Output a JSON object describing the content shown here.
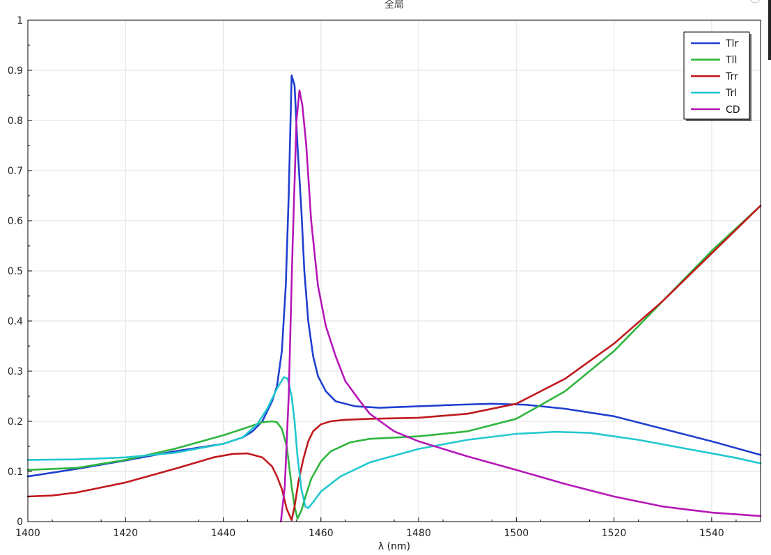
{
  "chart_data": {
    "type": "line",
    "title": "全局",
    "xlabel": "λ (nm)",
    "ylabel": "",
    "xlim": [
      1400,
      1550
    ],
    "ylim": [
      0,
      1
    ],
    "grid": true,
    "legend_position": "top-right",
    "x_ticks": [
      "1400",
      "1420",
      "1440",
      "1460",
      "1480",
      "1500",
      "1520",
      "1540"
    ],
    "y_ticks": [
      "0",
      "0.1",
      "0.2",
      "0.3",
      "0.4",
      "0.5",
      "0.6",
      "0.7",
      "0.8",
      "0.9",
      "1"
    ],
    "series": [
      {
        "name": "Tlr",
        "color": "#1f3fd1",
        "points": [
          [
            1400,
            0.09
          ],
          [
            1410,
            0.105
          ],
          [
            1420,
            0.122
          ],
          [
            1430,
            0.14
          ],
          [
            1440,
            0.155
          ],
          [
            1444,
            0.168
          ],
          [
            1446,
            0.18
          ],
          [
            1448,
            0.2
          ],
          [
            1450,
            0.24
          ],
          [
            1451,
            0.27
          ],
          [
            1452,
            0.34
          ],
          [
            1452.8,
            0.47
          ],
          [
            1453.4,
            0.65
          ],
          [
            1454,
            0.89
          ],
          [
            1454.6,
            0.87
          ],
          [
            1455.2,
            0.75
          ],
          [
            1456,
            0.62
          ],
          [
            1456.6,
            0.5
          ],
          [
            1457.4,
            0.4
          ],
          [
            1458.4,
            0.33
          ],
          [
            1459.4,
            0.29
          ],
          [
            1461,
            0.26
          ],
          [
            1463,
            0.24
          ],
          [
            1467,
            0.23
          ],
          [
            1472,
            0.227
          ],
          [
            1480,
            0.23
          ],
          [
            1488,
            0.233
          ],
          [
            1495,
            0.235
          ],
          [
            1502,
            0.233
          ],
          [
            1510,
            0.225
          ],
          [
            1520,
            0.21
          ],
          [
            1530,
            0.185
          ],
          [
            1540,
            0.16
          ],
          [
            1550,
            0.133
          ]
        ]
      },
      {
        "name": "Tll",
        "color": "#2fb53e",
        "points": [
          [
            1400,
            0.103
          ],
          [
            1410,
            0.107
          ],
          [
            1420,
            0.123
          ],
          [
            1430,
            0.145
          ],
          [
            1440,
            0.172
          ],
          [
            1445,
            0.188
          ],
          [
            1448,
            0.198
          ],
          [
            1450,
            0.2
          ],
          [
            1451,
            0.198
          ],
          [
            1452,
            0.185
          ],
          [
            1453,
            0.15
          ],
          [
            1454,
            0.07
          ],
          [
            1454.6,
            0.03
          ],
          [
            1455.2,
            0.006
          ],
          [
            1456,
            0.022
          ],
          [
            1457,
            0.055
          ],
          [
            1458,
            0.085
          ],
          [
            1460,
            0.12
          ],
          [
            1462,
            0.14
          ],
          [
            1466,
            0.158
          ],
          [
            1470,
            0.165
          ],
          [
            1480,
            0.17
          ],
          [
            1490,
            0.18
          ],
          [
            1500,
            0.205
          ],
          [
            1510,
            0.26
          ],
          [
            1520,
            0.34
          ],
          [
            1530,
            0.44
          ],
          [
            1540,
            0.54
          ],
          [
            1550,
            0.63
          ]
        ]
      },
      {
        "name": "Trr",
        "color": "#c0191d",
        "points": [
          [
            1400,
            0.05
          ],
          [
            1405,
            0.052
          ],
          [
            1410,
            0.058
          ],
          [
            1420,
            0.078
          ],
          [
            1430,
            0.105
          ],
          [
            1438,
            0.128
          ],
          [
            1442,
            0.135
          ],
          [
            1445,
            0.136
          ],
          [
            1448,
            0.128
          ],
          [
            1450,
            0.11
          ],
          [
            1451,
            0.09
          ],
          [
            1452,
            0.065
          ],
          [
            1453,
            0.025
          ],
          [
            1454,
            0.003
          ],
          [
            1454.6,
            0.03
          ],
          [
            1455.4,
            0.08
          ],
          [
            1456.4,
            0.125
          ],
          [
            1457.4,
            0.16
          ],
          [
            1458.4,
            0.18
          ],
          [
            1460,
            0.194
          ],
          [
            1462,
            0.2
          ],
          [
            1465,
            0.203
          ],
          [
            1470,
            0.205
          ],
          [
            1480,
            0.207
          ],
          [
            1490,
            0.215
          ],
          [
            1500,
            0.235
          ],
          [
            1510,
            0.285
          ],
          [
            1520,
            0.355
          ],
          [
            1530,
            0.44
          ],
          [
            1540,
            0.535
          ],
          [
            1550,
            0.63
          ]
        ]
      },
      {
        "name": "Trl",
        "color": "#22c8cf",
        "points": [
          [
            1400,
            0.123
          ],
          [
            1410,
            0.124
          ],
          [
            1420,
            0.128
          ],
          [
            1430,
            0.137
          ],
          [
            1440,
            0.155
          ],
          [
            1444,
            0.168
          ],
          [
            1447,
            0.195
          ],
          [
            1449,
            0.225
          ],
          [
            1451,
            0.265
          ],
          [
            1452.4,
            0.288
          ],
          [
            1453.2,
            0.285
          ],
          [
            1454,
            0.25
          ],
          [
            1454.6,
            0.2
          ],
          [
            1455.2,
            0.13
          ],
          [
            1456,
            0.065
          ],
          [
            1456.8,
            0.03
          ],
          [
            1457.4,
            0.027
          ],
          [
            1458.5,
            0.04
          ],
          [
            1460,
            0.06
          ],
          [
            1464,
            0.09
          ],
          [
            1470,
            0.118
          ],
          [
            1480,
            0.145
          ],
          [
            1490,
            0.163
          ],
          [
            1500,
            0.175
          ],
          [
            1508,
            0.179
          ],
          [
            1515,
            0.177
          ],
          [
            1525,
            0.163
          ],
          [
            1535,
            0.145
          ],
          [
            1545,
            0.127
          ],
          [
            1550,
            0.116
          ]
        ]
      },
      {
        "name": "CD",
        "color": "#b517b8",
        "points": [
          [
            1451.8,
            0
          ],
          [
            1452.6,
            0.07
          ],
          [
            1453.4,
            0.25
          ],
          [
            1454.2,
            0.55
          ],
          [
            1455,
            0.8
          ],
          [
            1455.6,
            0.86
          ],
          [
            1456.2,
            0.83
          ],
          [
            1457,
            0.75
          ],
          [
            1458,
            0.6
          ],
          [
            1459.4,
            0.47
          ],
          [
            1461,
            0.39
          ],
          [
            1463,
            0.33
          ],
          [
            1465,
            0.28
          ],
          [
            1468,
            0.24
          ],
          [
            1470,
            0.215
          ],
          [
            1475,
            0.18
          ],
          [
            1480,
            0.16
          ],
          [
            1490,
            0.13
          ],
          [
            1500,
            0.103
          ],
          [
            1510,
            0.075
          ],
          [
            1520,
            0.05
          ],
          [
            1530,
            0.03
          ],
          [
            1540,
            0.018
          ],
          [
            1550,
            0.011
          ]
        ]
      }
    ]
  }
}
